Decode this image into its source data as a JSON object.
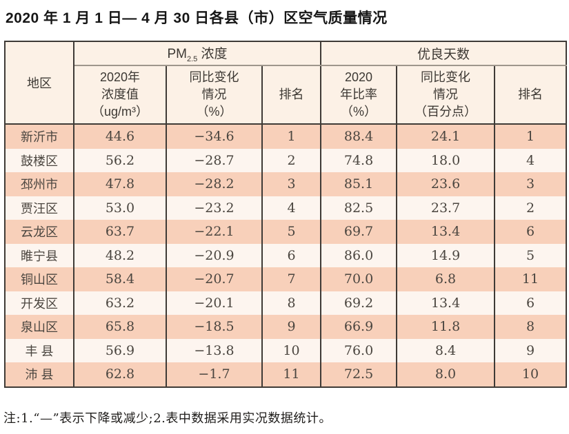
{
  "page": {
    "title": "2020 年 1 月 1 日— 4 月 30 日各县（市）区空气质量情况",
    "note": "注:1.“—”表示下降或减少;2.表中数据采用实况数据统计。"
  },
  "colors": {
    "row_salmon": "#f8d0ba",
    "row_light": "#fdf5ef",
    "header_bg": "#fcf1e6",
    "border_dark": "#3e3a36",
    "border_gray": "#9e968c"
  },
  "table": {
    "corner_header": "地区",
    "groups": {
      "pm": {
        "main": "PM",
        "sub": "2.5",
        "rest": " 浓度"
      },
      "days": "优良天数"
    },
    "subheaders": {
      "pm_value": "2020年\n浓度值\n（ug/m³）",
      "pm_change": "同比变化\n情况\n（%）",
      "pm_rank": "排名",
      "days_ratio": "2020\n年比率\n（%）",
      "days_change": "同比变化\n情况\n（百分点）",
      "days_rank": "排名"
    },
    "rows": [
      {
        "region": "新沂市",
        "pm_value": "44.6",
        "pm_change": "−34.6",
        "pm_rank": "1",
        "days_ratio": "88.4",
        "days_change": "24.1",
        "days_rank": "1"
      },
      {
        "region": "鼓楼区",
        "pm_value": "56.2",
        "pm_change": "−28.7",
        "pm_rank": "2",
        "days_ratio": "74.8",
        "days_change": "18.0",
        "days_rank": "4"
      },
      {
        "region": "邳州市",
        "pm_value": "47.8",
        "pm_change": "−28.2",
        "pm_rank": "3",
        "days_ratio": "85.1",
        "days_change": "23.6",
        "days_rank": "3"
      },
      {
        "region": "贾汪区",
        "pm_value": "53.0",
        "pm_change": "−23.2",
        "pm_rank": "4",
        "days_ratio": "82.5",
        "days_change": "23.7",
        "days_rank": "2"
      },
      {
        "region": "云龙区",
        "pm_value": "63.7",
        "pm_change": "−22.1",
        "pm_rank": "5",
        "days_ratio": "69.7",
        "days_change": "13.4",
        "days_rank": "6"
      },
      {
        "region": "睢宁县",
        "pm_value": "48.2",
        "pm_change": "−20.9",
        "pm_rank": "6",
        "days_ratio": "86.0",
        "days_change": "14.9",
        "days_rank": "5"
      },
      {
        "region": "铜山区",
        "pm_value": "58.4",
        "pm_change": "−20.7",
        "pm_rank": "7",
        "days_ratio": "70.0",
        "days_change": "6.8",
        "days_rank": "11"
      },
      {
        "region": "开发区",
        "pm_value": "63.2",
        "pm_change": "−20.1",
        "pm_rank": "8",
        "days_ratio": "69.2",
        "days_change": "13.4",
        "days_rank": "6"
      },
      {
        "region": "泉山区",
        "pm_value": "65.8",
        "pm_change": "−18.5",
        "pm_rank": "9",
        "days_ratio": "66.9",
        "days_change": "11.8",
        "days_rank": "8"
      },
      {
        "region": "丰 县",
        "pm_value": "56.9",
        "pm_change": "−13.8",
        "pm_rank": "10",
        "days_ratio": "76.0",
        "days_change": "8.4",
        "days_rank": "9"
      },
      {
        "region": "沛 县",
        "pm_value": "62.8",
        "pm_change": "−1.7",
        "pm_rank": "11",
        "days_ratio": "72.5",
        "days_change": "8.0",
        "days_rank": "10"
      }
    ]
  }
}
